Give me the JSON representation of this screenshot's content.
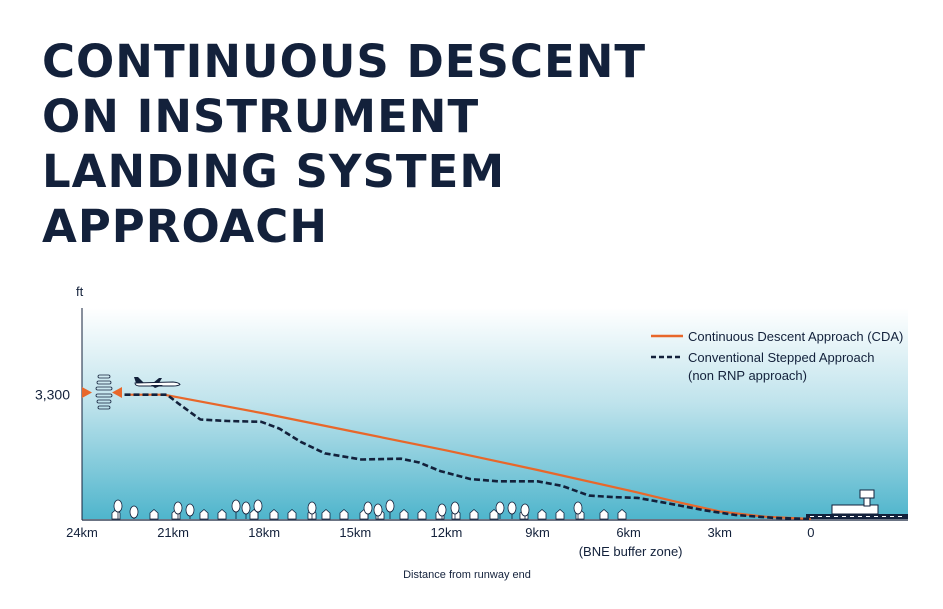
{
  "title_lines": [
    "CONTINUOUS DESCENT",
    "ON INSTRUMENT",
    "LANDING SYSTEM",
    "APPROACH"
  ],
  "chart_data": {
    "type": "line",
    "ylabel": "ft",
    "xlabel": "Distance from runway end",
    "x_ticks": [
      {
        "value": 24,
        "label": "24km"
      },
      {
        "value": 21,
        "label": "21km"
      },
      {
        "value": 18,
        "label": "18km"
      },
      {
        "value": 15,
        "label": "15km"
      },
      {
        "value": 12,
        "label": "12km"
      },
      {
        "value": 9,
        "label": "9km"
      },
      {
        "value": 6,
        "label": "6km",
        "sublabel": "(BNE buffer zone)"
      },
      {
        "value": 3,
        "label": "3km"
      },
      {
        "value": 0,
        "label": "0"
      }
    ],
    "y_ticks": [
      {
        "value": 3300,
        "label": "3,300"
      }
    ],
    "xlim": [
      24,
      -3.2
    ],
    "ylim": [
      0,
      5600
    ],
    "series": [
      {
        "name": "Continuous Descent Approach (CDA)",
        "color": "#e8672a",
        "style": "solid",
        "points": [
          [
            22.6,
            3300
          ],
          [
            21.3,
            3300
          ],
          [
            18,
            2800
          ],
          [
            15,
            2310
          ],
          [
            12,
            1820
          ],
          [
            9,
            1300
          ],
          [
            6,
            760
          ],
          [
            4.5,
            470
          ],
          [
            3,
            200
          ],
          [
            1.5,
            60
          ],
          [
            0,
            0
          ]
        ]
      },
      {
        "name": "Conventional Stepped Approach",
        "name_line2": "(non RNP approach)",
        "color": "#13213b",
        "style": "dashed",
        "points": [
          [
            22.6,
            3300
          ],
          [
            21.2,
            3300
          ],
          [
            20.8,
            3050
          ],
          [
            20.1,
            2640
          ],
          [
            19.2,
            2600
          ],
          [
            18.1,
            2580
          ],
          [
            17.5,
            2400
          ],
          [
            16.8,
            2050
          ],
          [
            16,
            1740
          ],
          [
            14.8,
            1580
          ],
          [
            13.5,
            1600
          ],
          [
            12.9,
            1500
          ],
          [
            12.2,
            1270
          ],
          [
            11.2,
            1060
          ],
          [
            10.3,
            1000
          ],
          [
            9,
            1000
          ],
          [
            8.2,
            880
          ],
          [
            7.3,
            620
          ],
          [
            6.5,
            580
          ],
          [
            5.7,
            560
          ],
          [
            4.8,
            430
          ],
          [
            3.5,
            230
          ],
          [
            2.5,
            110
          ],
          [
            1.2,
            30
          ],
          [
            0,
            0
          ]
        ]
      }
    ],
    "legend_position": "top-right",
    "grid": false,
    "background_gradient": [
      "#ffffff",
      "#4fb5cc"
    ]
  }
}
